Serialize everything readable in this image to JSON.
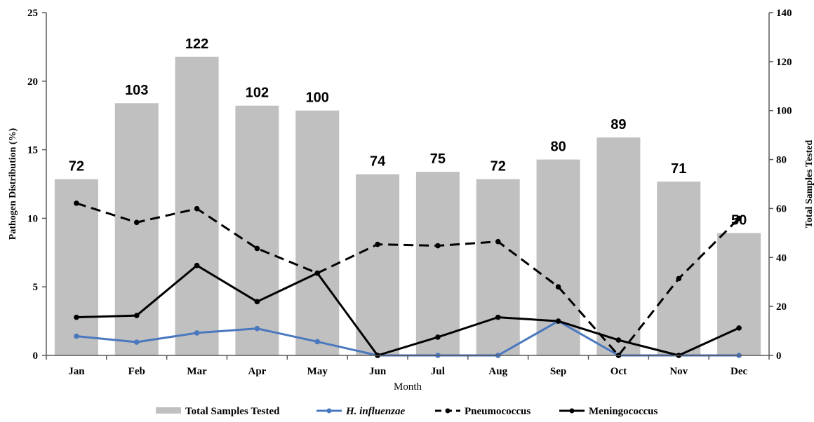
{
  "chart_data": {
    "type": "bar",
    "categories": [
      "Jan",
      "Feb",
      "Mar",
      "Apr",
      "May",
      "Jun",
      "Jul",
      "Aug",
      "Sep",
      "Oct",
      "Nov",
      "Dec"
    ],
    "xlabel": "Month",
    "ylabel": "Pathogen Distribution (%)",
    "ylabel_right": "Total Samples Tested",
    "ylim": [
      0,
      25
    ],
    "yticks": [
      0,
      5,
      10,
      15,
      20,
      25
    ],
    "ylim_right": [
      0,
      140
    ],
    "yticks_right": [
      0,
      20,
      40,
      60,
      80,
      100,
      120,
      140
    ],
    "grid": false,
    "legend_position": "bottom",
    "bar_series": {
      "name": "Total Samples Tested",
      "axis": "right",
      "color": "#c0c0c0",
      "values": [
        72,
        103,
        122,
        102,
        100,
        74,
        75,
        72,
        80,
        89,
        71,
        50
      ]
    },
    "series": [
      {
        "name": "H. influenzae",
        "type": "line",
        "axis": "left",
        "color": "#4a78be",
        "style": "solid",
        "values": [
          1.4,
          0.97,
          1.64,
          1.96,
          1.0,
          0,
          0,
          0,
          2.5,
          0,
          0,
          0
        ]
      },
      {
        "name": "Pneumococcus",
        "type": "line",
        "axis": "left",
        "color": "#000000",
        "style": "dashed",
        "values": [
          11.1,
          9.7,
          10.7,
          7.8,
          6.0,
          8.1,
          8.0,
          8.3,
          5.0,
          0,
          5.6,
          10.0
        ]
      },
      {
        "name": "Meningococcus",
        "type": "line",
        "axis": "left",
        "color": "#000000",
        "style": "solid",
        "values": [
          2.78,
          2.91,
          6.56,
          3.92,
          6.0,
          0,
          1.33,
          2.78,
          2.5,
          1.12,
          0,
          2.0
        ]
      }
    ]
  }
}
